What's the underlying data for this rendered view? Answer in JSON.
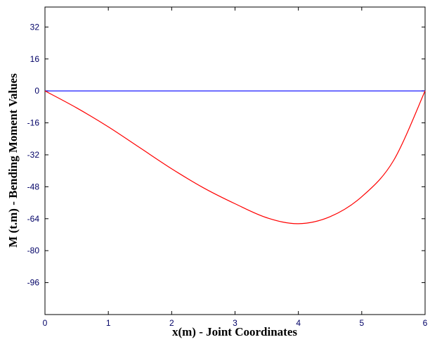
{
  "chart_data": {
    "type": "line",
    "title": "",
    "xlabel": "x(m) - Joint Coordinates",
    "ylabel": "M (t.m) - Bending Moment Values",
    "xlim": [
      0,
      6
    ],
    "ylim": [
      -112,
      42
    ],
    "x_ticks": [
      0,
      1,
      2,
      3,
      4,
      5,
      6
    ],
    "y_ticks": [
      32,
      16,
      0,
      -16,
      -32,
      -48,
      -64,
      -80,
      -96
    ],
    "grid": false,
    "legend": "none",
    "series": [
      {
        "color": "#0000ff",
        "x": [
          0,
          6
        ],
        "y": [
          0,
          0
        ]
      },
      {
        "color": "#ff0000",
        "x": [
          0,
          0.5,
          1.0,
          1.5,
          2.0,
          2.5,
          3.0,
          3.5,
          4.0,
          4.5,
          5.0,
          5.5,
          6.0
        ],
        "y": [
          0,
          -8.5,
          -18,
          -28.5,
          -39,
          -48.5,
          -56.5,
          -63.5,
          -66.5,
          -63,
          -53,
          -35,
          0
        ]
      }
    ]
  }
}
